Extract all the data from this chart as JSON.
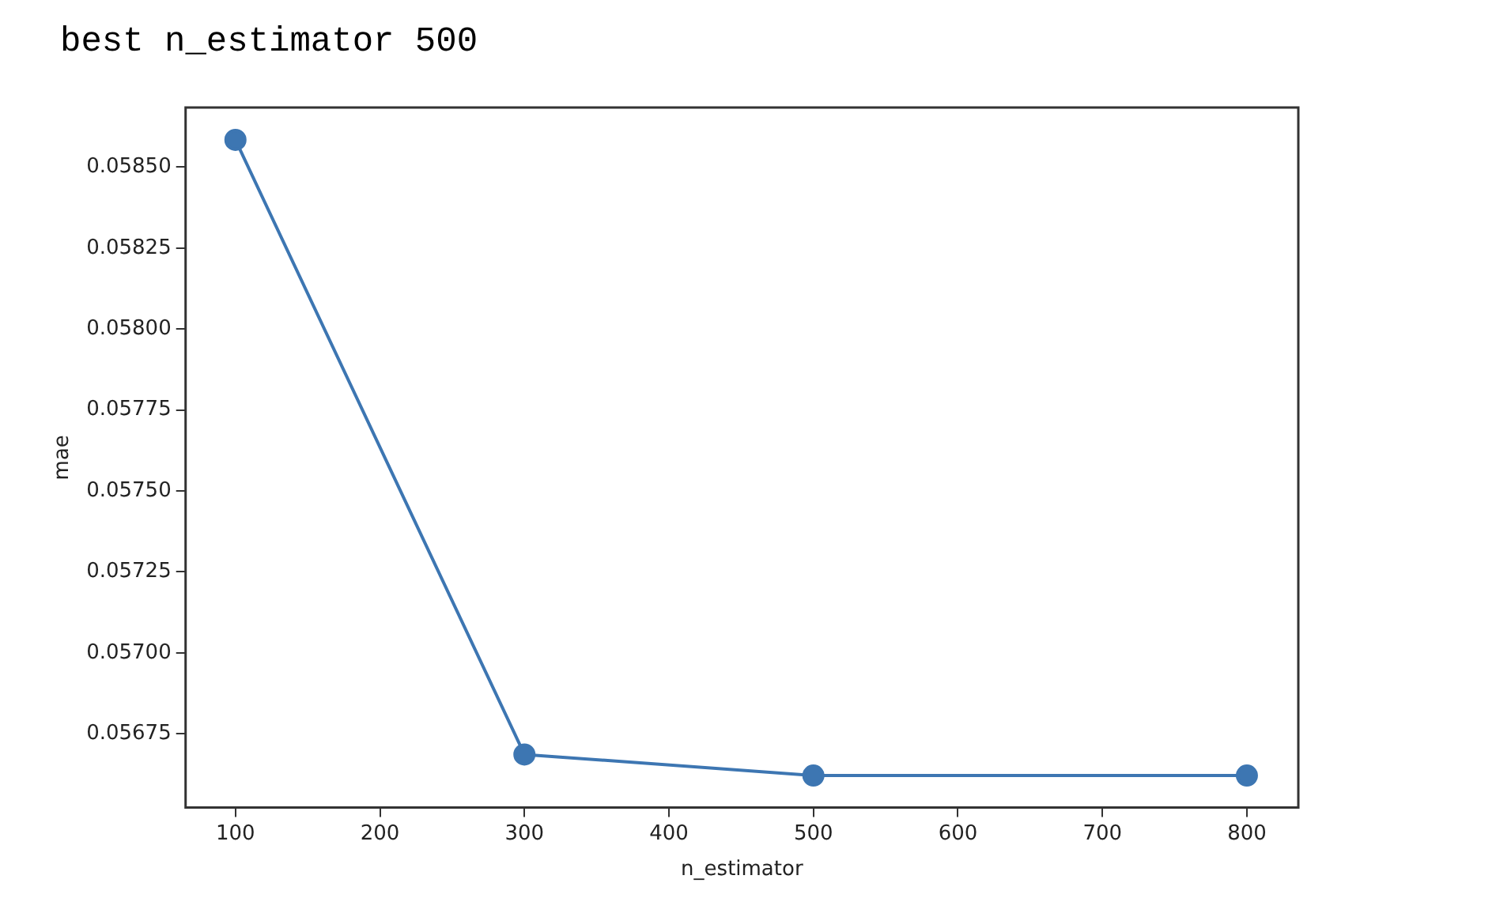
{
  "chart_data": {
    "type": "line",
    "title": "best n_estimator 500",
    "xlabel": "n_estimator",
    "ylabel": "mae",
    "x": [
      100,
      300,
      500,
      800
    ],
    "series": [
      {
        "color": "#3d76b2",
        "values": [
          0.058584,
          0.056686,
          0.056621,
          0.056621
        ]
      }
    ],
    "xlim": [
      65.5,
      835.6
    ],
    "xticks": [
      100,
      200,
      300,
      400,
      500,
      600,
      700,
      800
    ],
    "ylim": [
      0.056522,
      0.058684
    ],
    "yticks": [
      {
        "value": 0.05675,
        "label": "0.05675"
      },
      {
        "value": 0.057,
        "label": "0.05700"
      },
      {
        "value": 0.05725,
        "label": "0.05725"
      },
      {
        "value": 0.0575,
        "label": "0.05750"
      },
      {
        "value": 0.05775,
        "label": "0.05775"
      },
      {
        "value": 0.058,
        "label": "0.05800"
      },
      {
        "value": 0.05825,
        "label": "0.05825"
      },
      {
        "value": 0.0585,
        "label": "0.05850"
      }
    ],
    "grid": false,
    "legend": false,
    "marker": "circle",
    "line_style": "solid"
  }
}
